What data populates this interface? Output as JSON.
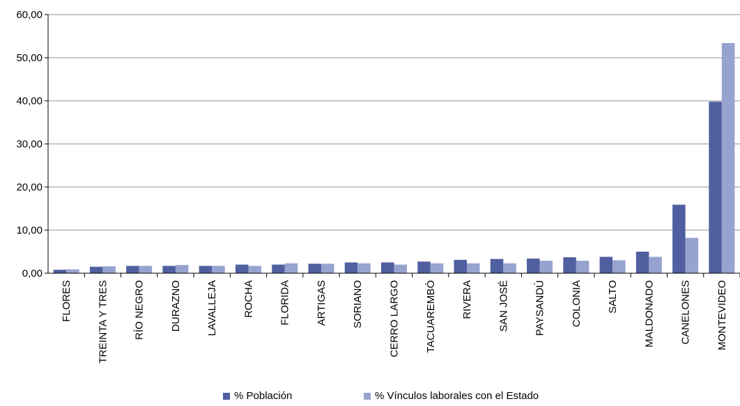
{
  "chart_data": {
    "type": "bar",
    "title": "",
    "xlabel": "",
    "ylabel": "",
    "ylim": [
      0,
      60
    ],
    "yticks": [
      "0,00",
      "10,00",
      "20,00",
      "30,00",
      "40,00",
      "50,00",
      "60,00"
    ],
    "grid": true,
    "legend_position": "bottom",
    "categories": [
      "FLORES",
      "TREINTA Y TRES",
      "RÍO NEGRO",
      "DURAZNO",
      "LAVALLEJA",
      "ROCHA",
      "FLORIDA",
      "ARTIGAS",
      "SORIANO",
      "CERRO LARGO",
      "TACUAREMBÓ",
      "RIVERA",
      "SAN JOSÉ",
      "PAYSANDÚ",
      "COLONIA",
      "SALTO",
      "MALDONADO",
      "CANELONES",
      "MONTEVIDEO"
    ],
    "series": [
      {
        "name": "% Población",
        "color": "#4f5f9f",
        "values": [
          0.8,
          1.5,
          1.7,
          1.7,
          1.7,
          2.0,
          2.0,
          2.2,
          2.5,
          2.5,
          2.7,
          3.1,
          3.3,
          3.4,
          3.7,
          3.8,
          5.0,
          15.9,
          39.8
        ]
      },
      {
        "name": "% Vínculos laborales con el Estado",
        "color": "#97a3cf",
        "values": [
          0.9,
          1.6,
          1.7,
          1.9,
          1.7,
          1.7,
          2.3,
          2.2,
          2.3,
          2.0,
          2.3,
          2.3,
          2.3,
          2.9,
          2.9,
          3.0,
          3.8,
          8.2,
          53.4
        ]
      }
    ]
  }
}
